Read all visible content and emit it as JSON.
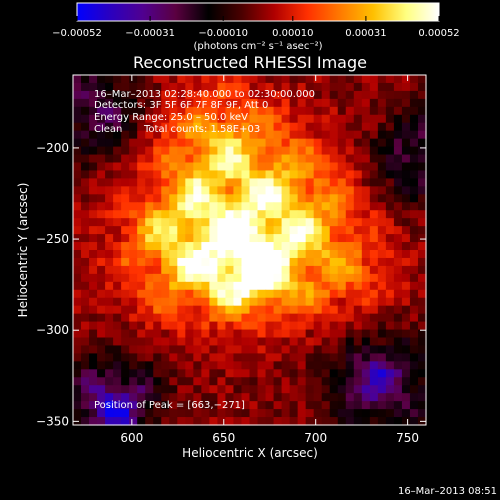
{
  "chart_data": {
    "type": "heatmap",
    "title": "Reconstructed RHESSI Image",
    "xlabel": "Heliocentric X (arcsec)",
    "ylabel": "Heliocentric Y (arcsec)",
    "xlim": [
      568,
      760
    ],
    "ylim": [
      -352,
      -160
    ],
    "x_ticks": [
      600,
      650,
      700,
      750
    ],
    "y_ticks": [
      -200,
      -250,
      -300,
      -350
    ],
    "x_tick_labels": [
      "600",
      "650",
      "700",
      "750"
    ],
    "y_tick_labels": [
      "−200",
      "−250",
      "−300",
      "−350"
    ],
    "colorbar": {
      "ticks": [
        -0.00052,
        -0.00031,
        -0.0001,
        0.0001,
        0.00031,
        0.00052
      ],
      "tick_labels": [
        "−0.00052",
        "−0.00031",
        "−0.00010",
        "0.00010",
        "0.00031",
        "0.00052"
      ],
      "range": [
        -0.00052,
        0.00052
      ],
      "unit_label": "(photons cm⁻² s⁻¹ asec⁻²)",
      "colormap": [
        "#0000ff",
        "#2a00c0",
        "#500090",
        "#5a0040",
        "#000000",
        "#4a0000",
        "#b00000",
        "#ff3000",
        "#ff7a00",
        "#ffc000",
        "#ffff80",
        "#ffffff"
      ]
    },
    "annotations": {
      "time_range": "16–Mar–2013 02:28:40.000 to 02:30:00.000",
      "detectors": "Detectors: 3F 5F 6F 7F 8F 9F, Att 0",
      "energy_range": "Energy Range: 25.0 – 50.0 keV",
      "clean_label": "Clean",
      "total_counts": "Total counts: 1.58E+03",
      "peak_position": "Position of Peak = [663,−271]"
    },
    "peak": {
      "x": 663,
      "y": -271
    },
    "sources": [
      {
        "x": 632,
        "y": -254,
        "amp": 0.00048,
        "sigma": 26
      },
      {
        "x": 666,
        "y": -268,
        "amp": 0.0005,
        "sigma": 16
      },
      {
        "x": 686,
        "y": -232,
        "amp": 0.00036,
        "sigma": 24
      },
      {
        "x": 648,
        "y": -200,
        "amp": 0.00032,
        "sigma": 24
      },
      {
        "x": 712,
        "y": -270,
        "amp": 0.00022,
        "sigma": 22
      }
    ],
    "negative_regions": [
      {
        "x": 590,
        "y": -340,
        "amp": -0.00048,
        "sigma": 16
      },
      {
        "x": 735,
        "y": -328,
        "amp": -0.0004,
        "sigma": 18
      },
      {
        "x": 580,
        "y": -180,
        "amp": -0.00028,
        "sigma": 18
      },
      {
        "x": 755,
        "y": -205,
        "amp": -0.0003,
        "sigma": 16
      }
    ],
    "grid": false
  },
  "footer": {
    "timestamp": "16–Mar–2013 08:51"
  }
}
